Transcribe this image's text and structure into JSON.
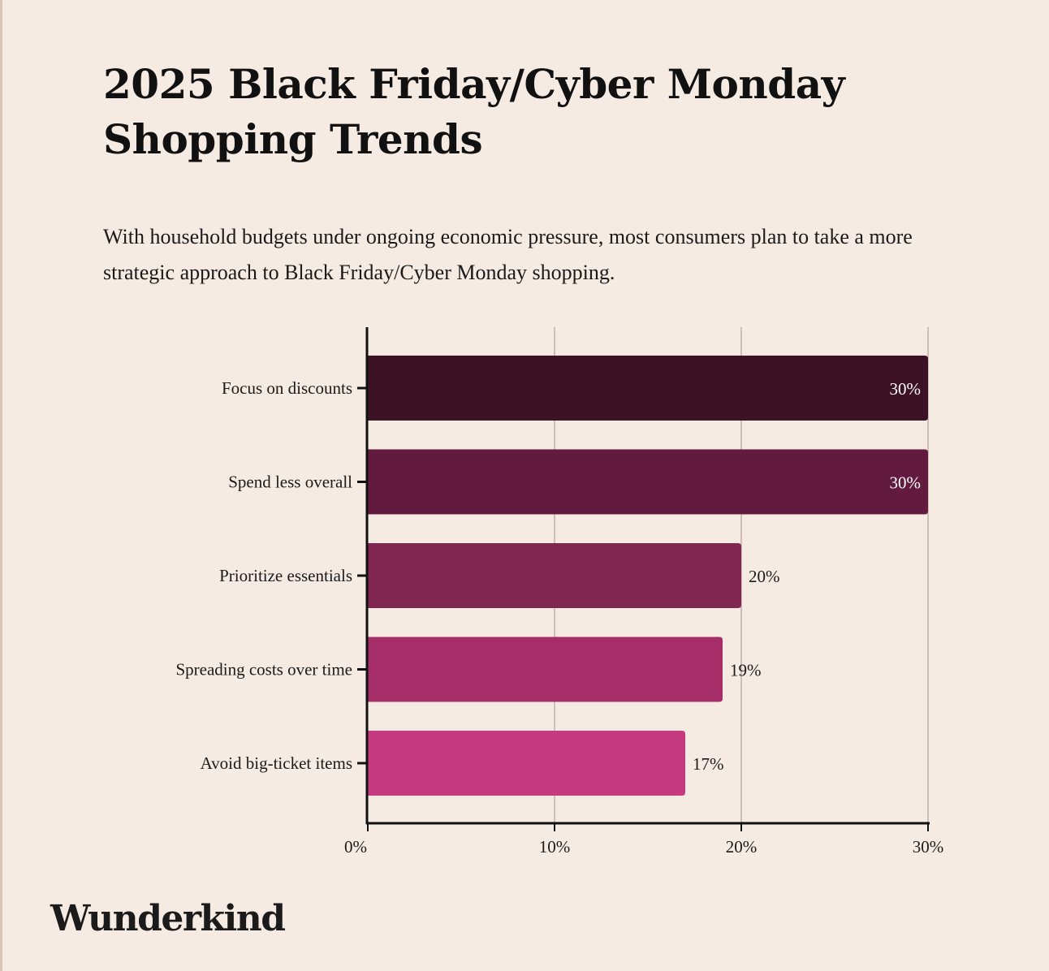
{
  "page": {
    "title": "2025 Black Friday/Cyber Monday Shopping Trends",
    "subtitle": "With household budgets under ongoing economic pressure, most consumers plan to take a more strategic approach to Black Friday/Cyber Monday shopping.",
    "brand": "Wunderkind",
    "background_color": "#f6ebe2"
  },
  "chart_data": {
    "type": "bar",
    "orientation": "horizontal",
    "categories": [
      "Focus on discounts",
      "Spend less overall",
      "Prioritize essentials",
      "Spreading costs over time",
      "Avoid big-ticket items"
    ],
    "values": [
      30,
      30,
      20,
      19,
      17
    ],
    "value_labels": [
      "30%",
      "30%",
      "20%",
      "19%",
      "17%"
    ],
    "colors": [
      "#3c1224",
      "#621b3f",
      "#812551",
      "#a52e69",
      "#c63a80"
    ],
    "xlim": [
      0,
      30
    ],
    "xticks": [
      0,
      10,
      20,
      30
    ],
    "xtick_labels": [
      "0%",
      "10%",
      "20%",
      "30%"
    ],
    "xlabel": "",
    "ylabel": "",
    "grid": "vertical",
    "legend": "none"
  }
}
